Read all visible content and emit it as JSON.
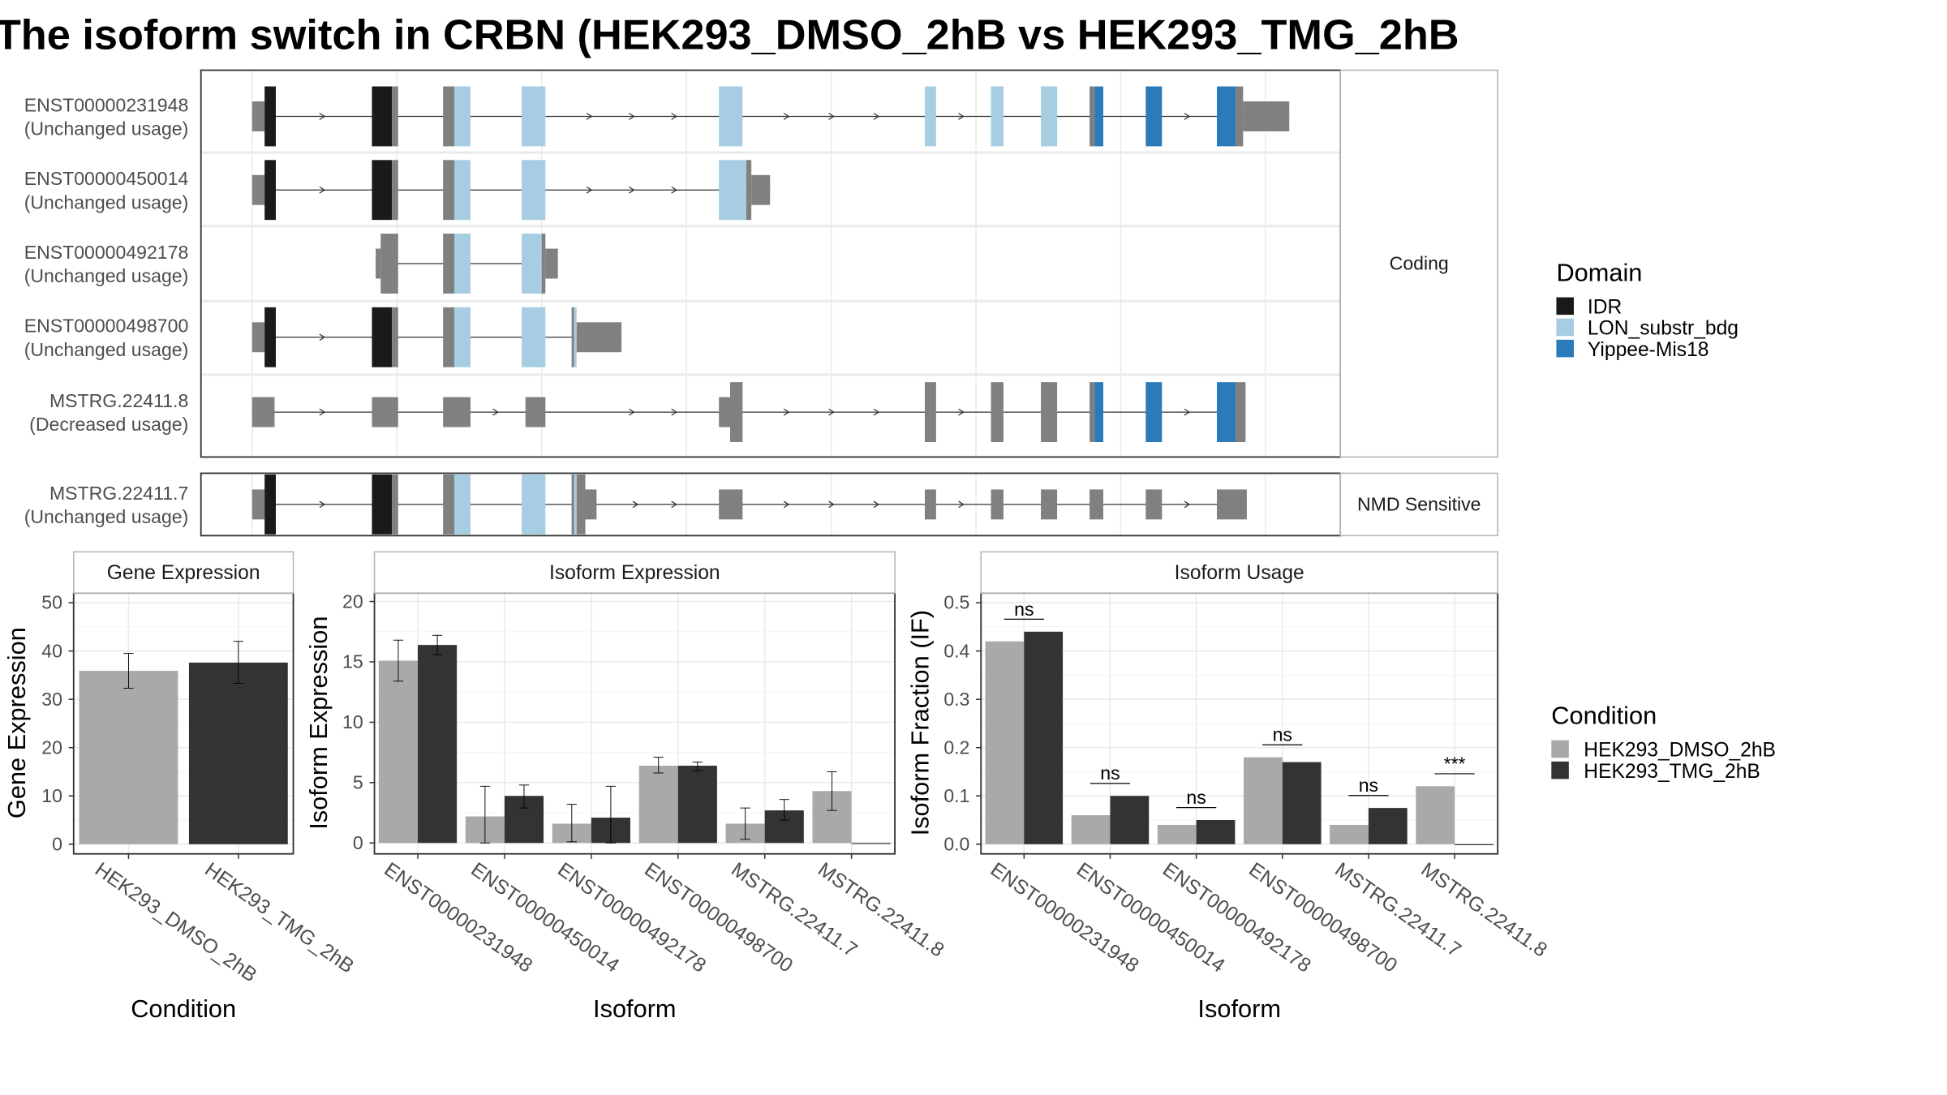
{
  "title": "The isoform switch in CRBN (HEK293_DMSO_2hB vs HEK293_TMG_2hB",
  "colors": {
    "utr": "#808080",
    "idr": "#1a1a1a",
    "lon": "#a6cde2",
    "yippee": "#2b7bba",
    "dmso": "#a9a9a9",
    "tmg": "#333333",
    "panel_border": "#333333",
    "strip_border": "#b3b3b3",
    "grid": "#ebebeb"
  },
  "domain_legend": {
    "title": "Domain",
    "items": [
      {
        "label": "IDR",
        "color": "#1a1a1a"
      },
      {
        "label": "LON_substr_bdg",
        "color": "#a6cde2"
      },
      {
        "label": "Yippee-Mis18",
        "color": "#2b7bba"
      }
    ]
  },
  "condition_legend": {
    "title": "Condition",
    "items": [
      {
        "label": "HEK293_DMSO_2hB",
        "color": "#a9a9a9"
      },
      {
        "label": "HEK293_TMG_2hB",
        "color": "#333333"
      }
    ]
  },
  "structure": {
    "groups": [
      {
        "strip": "Coding",
        "transcripts": [
          {
            "id": "ENST00000231948",
            "usage": "(Unchanged usage)",
            "blocks": [
              [
                202,
                212,
                "utr",
                "thin"
              ],
              [
                212,
                221,
                "idr",
                "full"
              ],
              [
                298,
                314,
                "idr",
                "full"
              ],
              [
                314,
                319,
                "utr",
                "full"
              ],
              [
                355,
                364,
                "utr",
                "full"
              ],
              [
                364,
                377,
                "lon",
                "full"
              ],
              [
                418,
                437,
                "lon",
                "full"
              ],
              [
                576,
                595,
                "lon",
                "full"
              ],
              [
                741,
                750,
                "lon",
                "full"
              ],
              [
                794,
                804,
                "lon",
                "full"
              ],
              [
                834,
                847,
                "lon",
                "full"
              ],
              [
                873,
                877,
                "utr",
                "full"
              ],
              [
                877,
                884,
                "yippee",
                "full"
              ],
              [
                918,
                931,
                "yippee",
                "full"
              ],
              [
                975,
                990,
                "yippee",
                "full"
              ],
              [
                990,
                996,
                "utr",
                "full"
              ],
              [
                996,
                1033,
                "utr",
                "thin"
              ]
            ],
            "arrows": [
              259,
              473,
              507,
              541,
              631,
              667,
              703,
              771,
              952
            ]
          },
          {
            "id": "ENST00000450014",
            "usage": "(Unchanged usage)",
            "blocks": [
              [
                202,
                212,
                "utr",
                "thin"
              ],
              [
                212,
                221,
                "idr",
                "full"
              ],
              [
                298,
                314,
                "idr",
                "full"
              ],
              [
                314,
                319,
                "utr",
                "full"
              ],
              [
                355,
                364,
                "utr",
                "full"
              ],
              [
                364,
                377,
                "lon",
                "full"
              ],
              [
                418,
                437,
                "lon",
                "full"
              ],
              [
                576,
                598,
                "lon",
                "full"
              ],
              [
                598,
                602,
                "utr",
                "full"
              ],
              [
                602,
                617,
                "utr",
                "thin"
              ]
            ],
            "arrows": [
              259,
              473,
              507,
              541
            ]
          },
          {
            "id": "ENST00000492178",
            "usage": "(Unchanged usage)",
            "blocks": [
              [
                301,
                305,
                "utr",
                "thin"
              ],
              [
                305,
                319,
                "utr",
                "full"
              ],
              [
                355,
                364,
                "utr",
                "full"
              ],
              [
                364,
                377,
                "lon",
                "full"
              ],
              [
                418,
                434,
                "lon",
                "full"
              ],
              [
                434,
                437,
                "utr",
                "full"
              ],
              [
                437,
                447,
                "utr",
                "thin"
              ]
            ],
            "arrows": []
          },
          {
            "id": "ENST00000498700",
            "usage": "(Unchanged usage)",
            "blocks": [
              [
                202,
                212,
                "utr",
                "thin"
              ],
              [
                212,
                221,
                "idr",
                "full"
              ],
              [
                298,
                314,
                "idr",
                "full"
              ],
              [
                314,
                319,
                "utr",
                "full"
              ],
              [
                355,
                364,
                "utr",
                "full"
              ],
              [
                364,
                377,
                "lon",
                "full"
              ],
              [
                418,
                437,
                "lon",
                "full"
              ],
              [
                458,
                460,
                "utr",
                "full"
              ],
              [
                460,
                462,
                "lon",
                "full"
              ],
              [
                462,
                498,
                "utr",
                "thin"
              ]
            ],
            "arrows": [
              259
            ]
          },
          {
            "id": "MSTRG.22411.8",
            "usage": "(Decreased usage)",
            "blocks": [
              [
                202,
                220,
                "utr",
                "thin"
              ],
              [
                298,
                319,
                "utr",
                "thin"
              ],
              [
                355,
                377,
                "utr",
                "thin"
              ],
              [
                421,
                437,
                "utr",
                "thin"
              ],
              [
                576,
                585,
                "utr",
                "thin"
              ],
              [
                585,
                595,
                "utr",
                "full"
              ],
              [
                741,
                750,
                "utr",
                "full"
              ],
              [
                794,
                804,
                "utr",
                "full"
              ],
              [
                834,
                847,
                "utr",
                "full"
              ],
              [
                873,
                877,
                "utr",
                "full"
              ],
              [
                877,
                884,
                "yippee",
                "full"
              ],
              [
                918,
                931,
                "yippee",
                "full"
              ],
              [
                975,
                990,
                "yippee",
                "full"
              ],
              [
                990,
                998,
                "utr",
                "full"
              ]
            ],
            "arrows": [
              259,
              398,
              507,
              541,
              631,
              667,
              703,
              771,
              952
            ]
          }
        ]
      },
      {
        "strip": "NMD Sensitive",
        "transcripts": [
          {
            "id": "MSTRG.22411.7",
            "usage": "(Unchanged usage)",
            "blocks": [
              [
                202,
                212,
                "utr",
                "thin"
              ],
              [
                212,
                221,
                "idr",
                "full"
              ],
              [
                298,
                314,
                "idr",
                "full"
              ],
              [
                314,
                319,
                "utr",
                "full"
              ],
              [
                355,
                364,
                "utr",
                "full"
              ],
              [
                364,
                377,
                "lon",
                "full"
              ],
              [
                418,
                437,
                "lon",
                "full"
              ],
              [
                458,
                460,
                "utr",
                "full"
              ],
              [
                460,
                462,
                "lon",
                "full"
              ],
              [
                462,
                469,
                "utr",
                "full"
              ],
              [
                469,
                478,
                "utr",
                "thin"
              ],
              [
                576,
                595,
                "utr",
                "thin"
              ],
              [
                741,
                750,
                "utr",
                "thin"
              ],
              [
                794,
                804,
                "utr",
                "thin"
              ],
              [
                834,
                847,
                "utr",
                "thin"
              ],
              [
                873,
                884,
                "utr",
                "thin"
              ],
              [
                918,
                931,
                "utr",
                "thin"
              ],
              [
                975,
                999,
                "utr",
                "thin"
              ]
            ],
            "arrows": [
              259,
              510,
              541,
              631,
              667,
              703,
              771,
              952
            ]
          }
        ]
      }
    ]
  },
  "chart_data": [
    {
      "type": "bar",
      "title": "Gene Expression",
      "xlabel": "Condition",
      "ylabel": "Gene Expression",
      "ylim": [
        -2,
        52
      ],
      "yticks": [
        "0",
        "10",
        "20",
        "30",
        "40",
        "50"
      ],
      "categories": [
        "HEK293_DMSO_2hB",
        "HEK293_TMG_2hB"
      ],
      "series": [
        {
          "name": "HEK293_DMSO_2hB",
          "values": [
            35.9,
            null
          ],
          "err_low": [
            32.3,
            null
          ],
          "err_high": [
            39.5,
            null
          ]
        },
        {
          "name": "HEK293_TMG_2hB",
          "values": [
            null,
            37.6
          ],
          "err_low": [
            null,
            33.3
          ],
          "err_high": [
            null,
            42.0
          ]
        }
      ]
    },
    {
      "type": "bar",
      "title": "Isoform Expression",
      "xlabel": "Isoform",
      "ylabel": "Isoform Expression",
      "ylim": [
        -0.9,
        20.7
      ],
      "yticks": [
        "0",
        "5",
        "10",
        "15",
        "20"
      ],
      "categories": [
        "ENST00000231948",
        "ENST00000450014",
        "ENST00000492178",
        "ENST00000498700",
        "MSTRG.22411.7",
        "MSTRG.22411.8"
      ],
      "series": [
        {
          "name": "HEK293_DMSO_2hB",
          "values": [
            15.1,
            2.2,
            1.6,
            6.4,
            1.6,
            4.3
          ],
          "err_low": [
            13.4,
            0.0,
            0.1,
            5.8,
            0.3,
            2.7
          ],
          "err_high": [
            16.8,
            4.7,
            3.2,
            7.1,
            2.9,
            5.9
          ]
        },
        {
          "name": "HEK293_TMG_2hB",
          "values": [
            16.4,
            3.9,
            2.1,
            6.4,
            2.7,
            0.0
          ],
          "err_low": [
            15.6,
            2.9,
            0.0,
            6.0,
            1.9,
            null
          ],
          "err_high": [
            17.2,
            4.8,
            4.7,
            6.7,
            3.6,
            null
          ]
        }
      ]
    },
    {
      "type": "bar",
      "title": "Isoform Usage",
      "xlabel": "Isoform",
      "ylabel": "Isoform Fraction (IF)",
      "ylim": [
        -0.02,
        0.52
      ],
      "yticks": [
        "0.0",
        "0.1",
        "0.2",
        "0.3",
        "0.4",
        "0.5"
      ],
      "categories": [
        "ENST00000231948",
        "ENST00000450014",
        "ENST00000492178",
        "ENST00000498700",
        "MSTRG.22411.7",
        "MSTRG.22411.8"
      ],
      "series": [
        {
          "name": "HEK293_DMSO_2hB",
          "values": [
            0.42,
            0.06,
            0.04,
            0.18,
            0.04,
            0.12
          ]
        },
        {
          "name": "HEK293_TMG_2hB",
          "values": [
            0.44,
            0.1,
            0.05,
            0.17,
            0.075,
            0.0
          ]
        }
      ],
      "significance": [
        "ns",
        "ns",
        "ns",
        "ns",
        "ns",
        "***"
      ]
    }
  ]
}
